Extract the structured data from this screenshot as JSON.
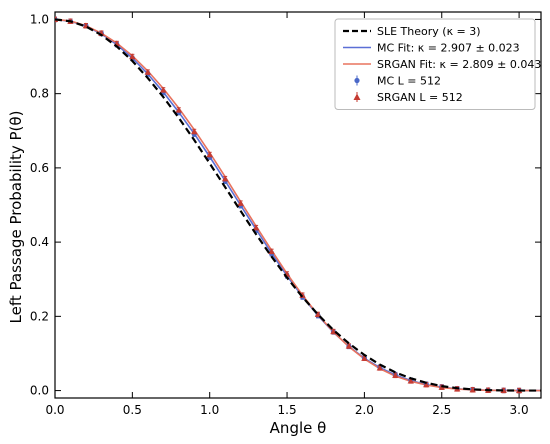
{
  "chart_data": {
    "type": "line",
    "xlabel": "Angle θ",
    "ylabel": "Left Passage Probability P(θ)",
    "xlim": [
      0,
      3.1416
    ],
    "ylim": [
      -0.02,
      1.02
    ],
    "x_ticks": [
      "0.0",
      "0.5",
      "1.0",
      "1.5",
      "2.0",
      "2.5",
      "3.0"
    ],
    "y_ticks": [
      "0.0",
      "0.2",
      "0.4",
      "0.6",
      "0.8",
      "1.0"
    ],
    "grid": false,
    "legend_position": "top-right",
    "series": [
      {
        "name": "SLE Theory (κ = 3)",
        "style": "dashed-line",
        "color": "#000000",
        "x": [
          0.0,
          0.1,
          0.2,
          0.3,
          0.4,
          0.5,
          0.6,
          0.7,
          0.8,
          0.9,
          1.0,
          1.1,
          1.2,
          1.3,
          1.4,
          1.5,
          1.6,
          1.7,
          1.8,
          1.9,
          2.0,
          2.1,
          2.2,
          2.3,
          2.4,
          2.5,
          2.6,
          2.7,
          2.8,
          2.9,
          3.0,
          3.1416
        ],
        "y": [
          1.0,
          0.995,
          0.981,
          0.958,
          0.927,
          0.888,
          0.842,
          0.791,
          0.735,
          0.675,
          0.612,
          0.548,
          0.484,
          0.421,
          0.361,
          0.304,
          0.252,
          0.205,
          0.163,
          0.127,
          0.096,
          0.07,
          0.049,
          0.033,
          0.021,
          0.012,
          0.0065,
          0.0032,
          0.0013,
          0.0004,
          5e-05,
          0.0
        ]
      },
      {
        "name": "MC Fit: κ = 2.907 ± 0.023",
        "style": "line",
        "color": "#5b6fd6",
        "x": [
          0.0,
          0.1,
          0.2,
          0.3,
          0.4,
          0.5,
          0.6,
          0.7,
          0.8,
          0.9,
          1.0,
          1.1,
          1.2,
          1.3,
          1.4,
          1.5,
          1.6,
          1.7,
          1.8,
          1.9,
          2.0,
          2.1,
          2.2,
          2.3,
          2.4,
          2.5,
          2.6,
          2.7,
          2.8,
          2.9,
          3.0,
          3.1416
        ],
        "y": [
          1.0,
          0.995,
          0.982,
          0.961,
          0.932,
          0.896,
          0.853,
          0.804,
          0.75,
          0.692,
          0.63,
          0.565,
          0.499,
          0.434,
          0.37,
          0.309,
          0.253,
          0.202,
          0.157,
          0.119,
          0.087,
          0.062,
          0.042,
          0.027,
          0.016,
          0.0092,
          0.0048,
          0.0022,
          0.0009,
          0.0003,
          4e-05,
          0.0
        ]
      },
      {
        "name": "SRGAN Fit: κ = 2.809 ± 0.043",
        "style": "line",
        "color": "#e8735e",
        "x": [
          0.0,
          0.1,
          0.2,
          0.3,
          0.4,
          0.5,
          0.6,
          0.7,
          0.8,
          0.9,
          1.0,
          1.1,
          1.2,
          1.3,
          1.4,
          1.5,
          1.6,
          1.7,
          1.8,
          1.9,
          2.0,
          2.1,
          2.2,
          2.3,
          2.4,
          2.5,
          2.6,
          2.7,
          2.8,
          2.9,
          3.0,
          3.1416
        ],
        "y": [
          1.0,
          0.996,
          0.983,
          0.963,
          0.936,
          0.902,
          0.861,
          0.814,
          0.761,
          0.703,
          0.641,
          0.576,
          0.509,
          0.443,
          0.378,
          0.315,
          0.257,
          0.204,
          0.158,
          0.118,
          0.085,
          0.059,
          0.039,
          0.025,
          0.015,
          0.0082,
          0.0042,
          0.0019,
          0.0008,
          0.0002,
          3e-05,
          0.0
        ]
      },
      {
        "name": "MC L = 512",
        "style": "markers-circle",
        "color": "#4a68c8",
        "x": [
          0.0,
          0.1,
          0.2,
          0.3,
          0.4,
          0.5,
          0.6,
          0.7,
          0.8,
          0.9,
          1.0,
          1.1,
          1.2,
          1.3,
          1.4,
          1.5,
          1.6,
          1.7,
          1.8,
          1.9,
          2.0,
          2.1,
          2.2,
          2.3,
          2.4,
          2.5,
          2.6,
          2.7,
          2.8,
          2.9,
          3.0
        ],
        "y": [
          1.0,
          0.995,
          0.983,
          0.962,
          0.932,
          0.895,
          0.853,
          0.803,
          0.749,
          0.691,
          0.629,
          0.564,
          0.498,
          0.432,
          0.369,
          0.309,
          0.252,
          0.202,
          0.158,
          0.119,
          0.088,
          0.063,
          0.043,
          0.028,
          0.017,
          0.01,
          0.005,
          0.0024,
          0.001,
          0.0004,
          0.0001
        ],
        "error": 0.006
      },
      {
        "name": "SRGAN L = 512",
        "style": "markers-triangle",
        "color": "#c53b32",
        "x": [
          0.0,
          0.1,
          0.2,
          0.3,
          0.4,
          0.5,
          0.6,
          0.7,
          0.8,
          0.9,
          1.0,
          1.1,
          1.2,
          1.3,
          1.4,
          1.5,
          1.6,
          1.7,
          1.8,
          1.9,
          2.0,
          2.1,
          2.2,
          2.3,
          2.4,
          2.5,
          2.6,
          2.7,
          2.8,
          2.9,
          3.0
        ],
        "y": [
          1.0,
          0.995,
          0.983,
          0.963,
          0.935,
          0.9,
          0.858,
          0.81,
          0.756,
          0.698,
          0.636,
          0.571,
          0.505,
          0.439,
          0.375,
          0.314,
          0.257,
          0.205,
          0.159,
          0.12,
          0.087,
          0.061,
          0.041,
          0.026,
          0.016,
          0.009,
          0.0045,
          0.0021,
          0.0009,
          0.0003,
          0.0001
        ],
        "error": 0.006
      }
    ]
  }
}
